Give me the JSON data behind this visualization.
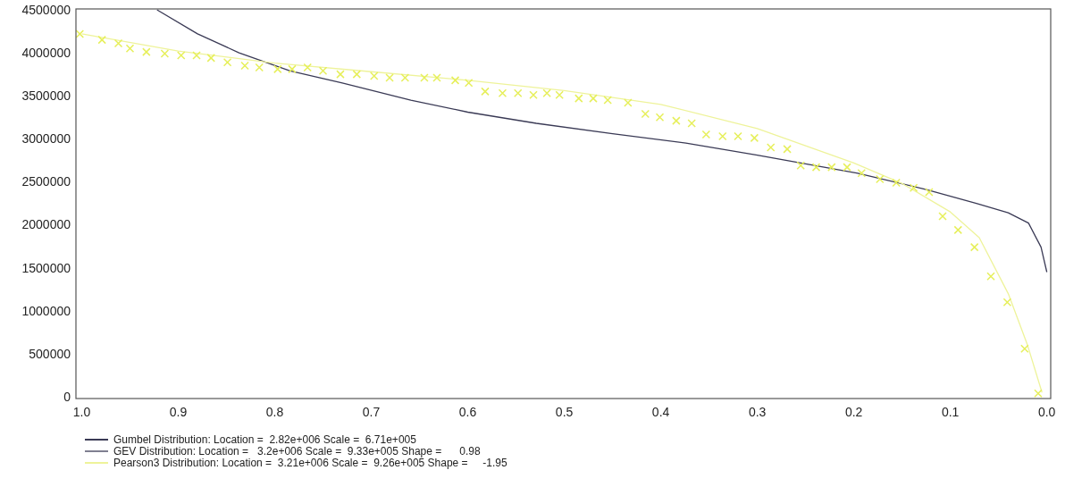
{
  "chart_data": {
    "type": "line",
    "xlim": [
      1.006,
      -0.004
    ],
    "ylim": [
      -20000,
      4510000
    ],
    "xticks": [
      {
        "value": 1,
        "label": "1.0"
      },
      {
        "value": 0.9,
        "label": "0.9"
      },
      {
        "value": 0.8,
        "label": "0.8"
      },
      {
        "value": 0.7,
        "label": "0.7"
      },
      {
        "value": 0.6,
        "label": "0.6"
      },
      {
        "value": 0.5,
        "label": "0.5"
      },
      {
        "value": 0.4,
        "label": "0.4"
      },
      {
        "value": 0.3,
        "label": "0.3"
      },
      {
        "value": 0.2,
        "label": "0.2"
      },
      {
        "value": 0.1,
        "label": "0.1"
      },
      {
        "value": 0,
        "label": "0.0"
      }
    ],
    "yticks": [
      0,
      500000,
      1000000,
      1500000,
      2000000,
      2500000,
      3000000,
      3500000,
      4000000,
      4500000
    ],
    "grid": false,
    "legend": "bottom",
    "line_style": "solid",
    "annotations": [
      "GEV Distribution: Location =   3.2e+006 Scale =  9.33e+005 Shape =      0.98"
    ],
    "series": [
      {
        "name": "Gumbel Distribution: Location =  2.82e+006 Scale =  6.71e+005",
        "color": "#3a3a55",
        "x": [
          0.922,
          0.88,
          0.837,
          0.784,
          0.73,
          0.659,
          0.6,
          0.529,
          0.45,
          0.374,
          0.3,
          0.196,
          0.125,
          0.073,
          0.04,
          0.019,
          0.006,
          0.0
        ],
        "values": [
          4500000,
          4220000,
          4000000,
          3790000,
          3650000,
          3450000,
          3310000,
          3180000,
          3060000,
          2950000,
          2810000,
          2600000,
          2410000,
          2250000,
          2140000,
          2020000,
          1740000,
          1450000
        ]
      },
      {
        "name": "Pearson3 Distribution: Location =  3.21e+006 Scale =  9.26e+005 Shape =     -1.95",
        "color": "#eef39a",
        "x": [
          1.0,
          0.9,
          0.8,
          0.7,
          0.6,
          0.5,
          0.4,
          0.3,
          0.2,
          0.15,
          0.1,
          0.07,
          0.04,
          0.02,
          0.005
        ],
        "values": [
          4220000,
          4020000,
          3880000,
          3780000,
          3680000,
          3560000,
          3400000,
          3120000,
          2720000,
          2480000,
          2150000,
          1850000,
          1200000,
          600000,
          50000
        ]
      },
      {
        "type": "scatter",
        "color": "#e6ef5a",
        "marker": "cross",
        "x": [
          1.002,
          0.979,
          0.962,
          0.95,
          0.933,
          0.914,
          0.897,
          0.881,
          0.866,
          0.849,
          0.831,
          0.816,
          0.797,
          0.782,
          0.766,
          0.75,
          0.732,
          0.715,
          0.697,
          0.681,
          0.665,
          0.645,
          0.632,
          0.613,
          0.599,
          0.582,
          0.564,
          0.548,
          0.532,
          0.518,
          0.505,
          0.485,
          0.47,
          0.455,
          0.434,
          0.416,
          0.401,
          0.384,
          0.368,
          0.353,
          0.336,
          0.32,
          0.303,
          0.286,
          0.269,
          0.255,
          0.239,
          0.223,
          0.207,
          0.192,
          0.173,
          0.156,
          0.138,
          0.122,
          0.108,
          0.092,
          0.075,
          0.058,
          0.041,
          0.023,
          0.009
        ],
        "values": [
          4220000,
          4150000,
          4110000,
          4050000,
          4010000,
          3990000,
          3970000,
          3970000,
          3940000,
          3890000,
          3850000,
          3830000,
          3810000,
          3810000,
          3830000,
          3790000,
          3750000,
          3750000,
          3730000,
          3710000,
          3710000,
          3710000,
          3710000,
          3680000,
          3650000,
          3550000,
          3530000,
          3530000,
          3510000,
          3530000,
          3510000,
          3470000,
          3470000,
          3450000,
          3420000,
          3290000,
          3250000,
          3210000,
          3180000,
          3050000,
          3030000,
          3030000,
          3010000,
          2900000,
          2880000,
          2690000,
          2670000,
          2670000,
          2670000,
          2600000,
          2530000,
          2490000,
          2430000,
          2380000,
          2100000,
          1940000,
          1740000,
          1400000,
          1100000,
          560000,
          40000
        ]
      }
    ]
  }
}
